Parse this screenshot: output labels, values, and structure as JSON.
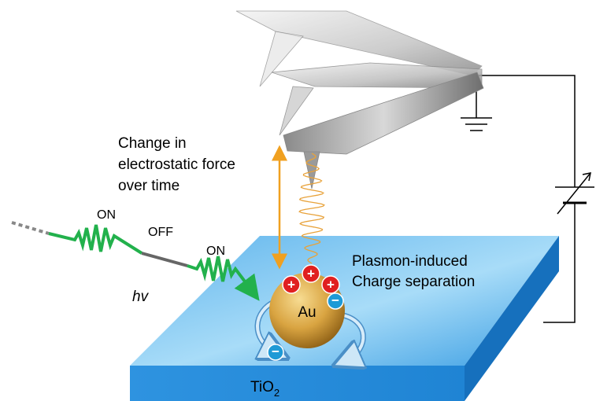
{
  "labels": {
    "force_change": [
      "Change in",
      "electrostatic force",
      "over time"
    ],
    "light": {
      "on_1": "ON",
      "off": "OFF",
      "on_2": "ON",
      "photon": "hv"
    },
    "plasmon": [
      "Plasmon-induced",
      "Charge separation"
    ],
    "particle": "Au",
    "substrate": {
      "formula": "TiO",
      "subscript": "2"
    },
    "charges": {
      "positive": [
        "+",
        "+",
        "+"
      ],
      "negative": [
        "−",
        "−"
      ]
    }
  }
}
